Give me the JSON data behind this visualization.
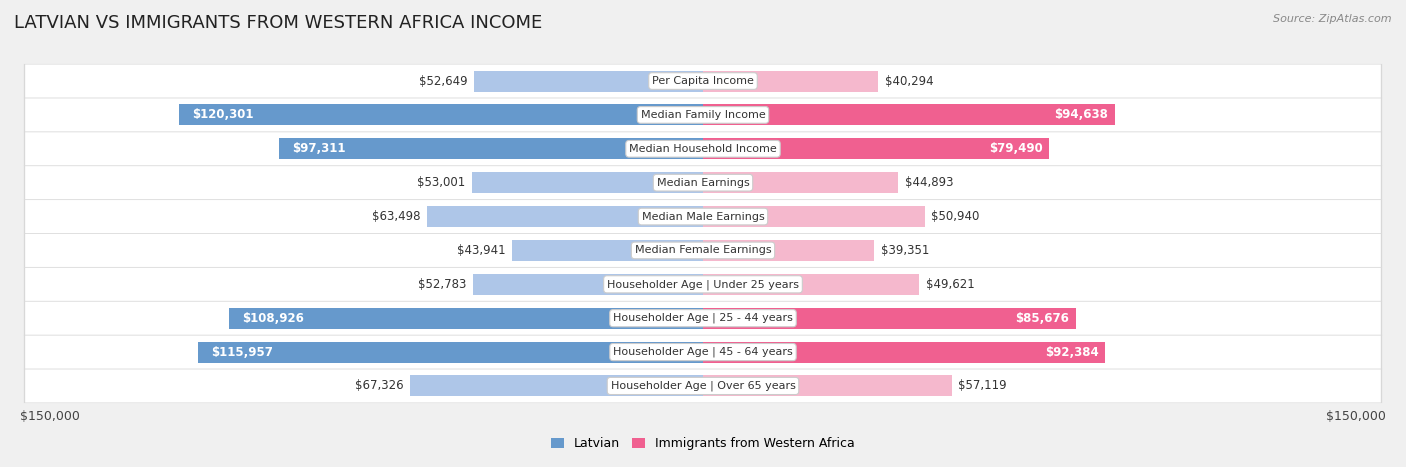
{
  "title": "LATVIAN VS IMMIGRANTS FROM WESTERN AFRICA INCOME",
  "source": "Source: ZipAtlas.com",
  "categories": [
    "Per Capita Income",
    "Median Family Income",
    "Median Household Income",
    "Median Earnings",
    "Median Male Earnings",
    "Median Female Earnings",
    "Householder Age | Under 25 years",
    "Householder Age | 25 - 44 years",
    "Householder Age | 45 - 64 years",
    "Householder Age | Over 65 years"
  ],
  "latvian_values": [
    52649,
    120301,
    97311,
    53001,
    63498,
    43941,
    52783,
    108926,
    115957,
    67326
  ],
  "immigrant_values": [
    40294,
    94638,
    79490,
    44893,
    50940,
    39351,
    49621,
    85676,
    92384,
    57119
  ],
  "latvian_color_light": "#aec6e8",
  "latvian_color_dark": "#6699cc",
  "immigrant_color_light": "#f5b8cd",
  "immigrant_color_dark": "#f06090",
  "max_value": 150000,
  "background_color": "#f0f0f0",
  "row_bg_color": "#f7f7f7",
  "title_fontsize": 13,
  "bar_height": 0.62,
  "inside_label_threshold": 75000,
  "legend_label_latvian": "Latvian",
  "legend_label_immigrant": "Immigrants from Western Africa"
}
